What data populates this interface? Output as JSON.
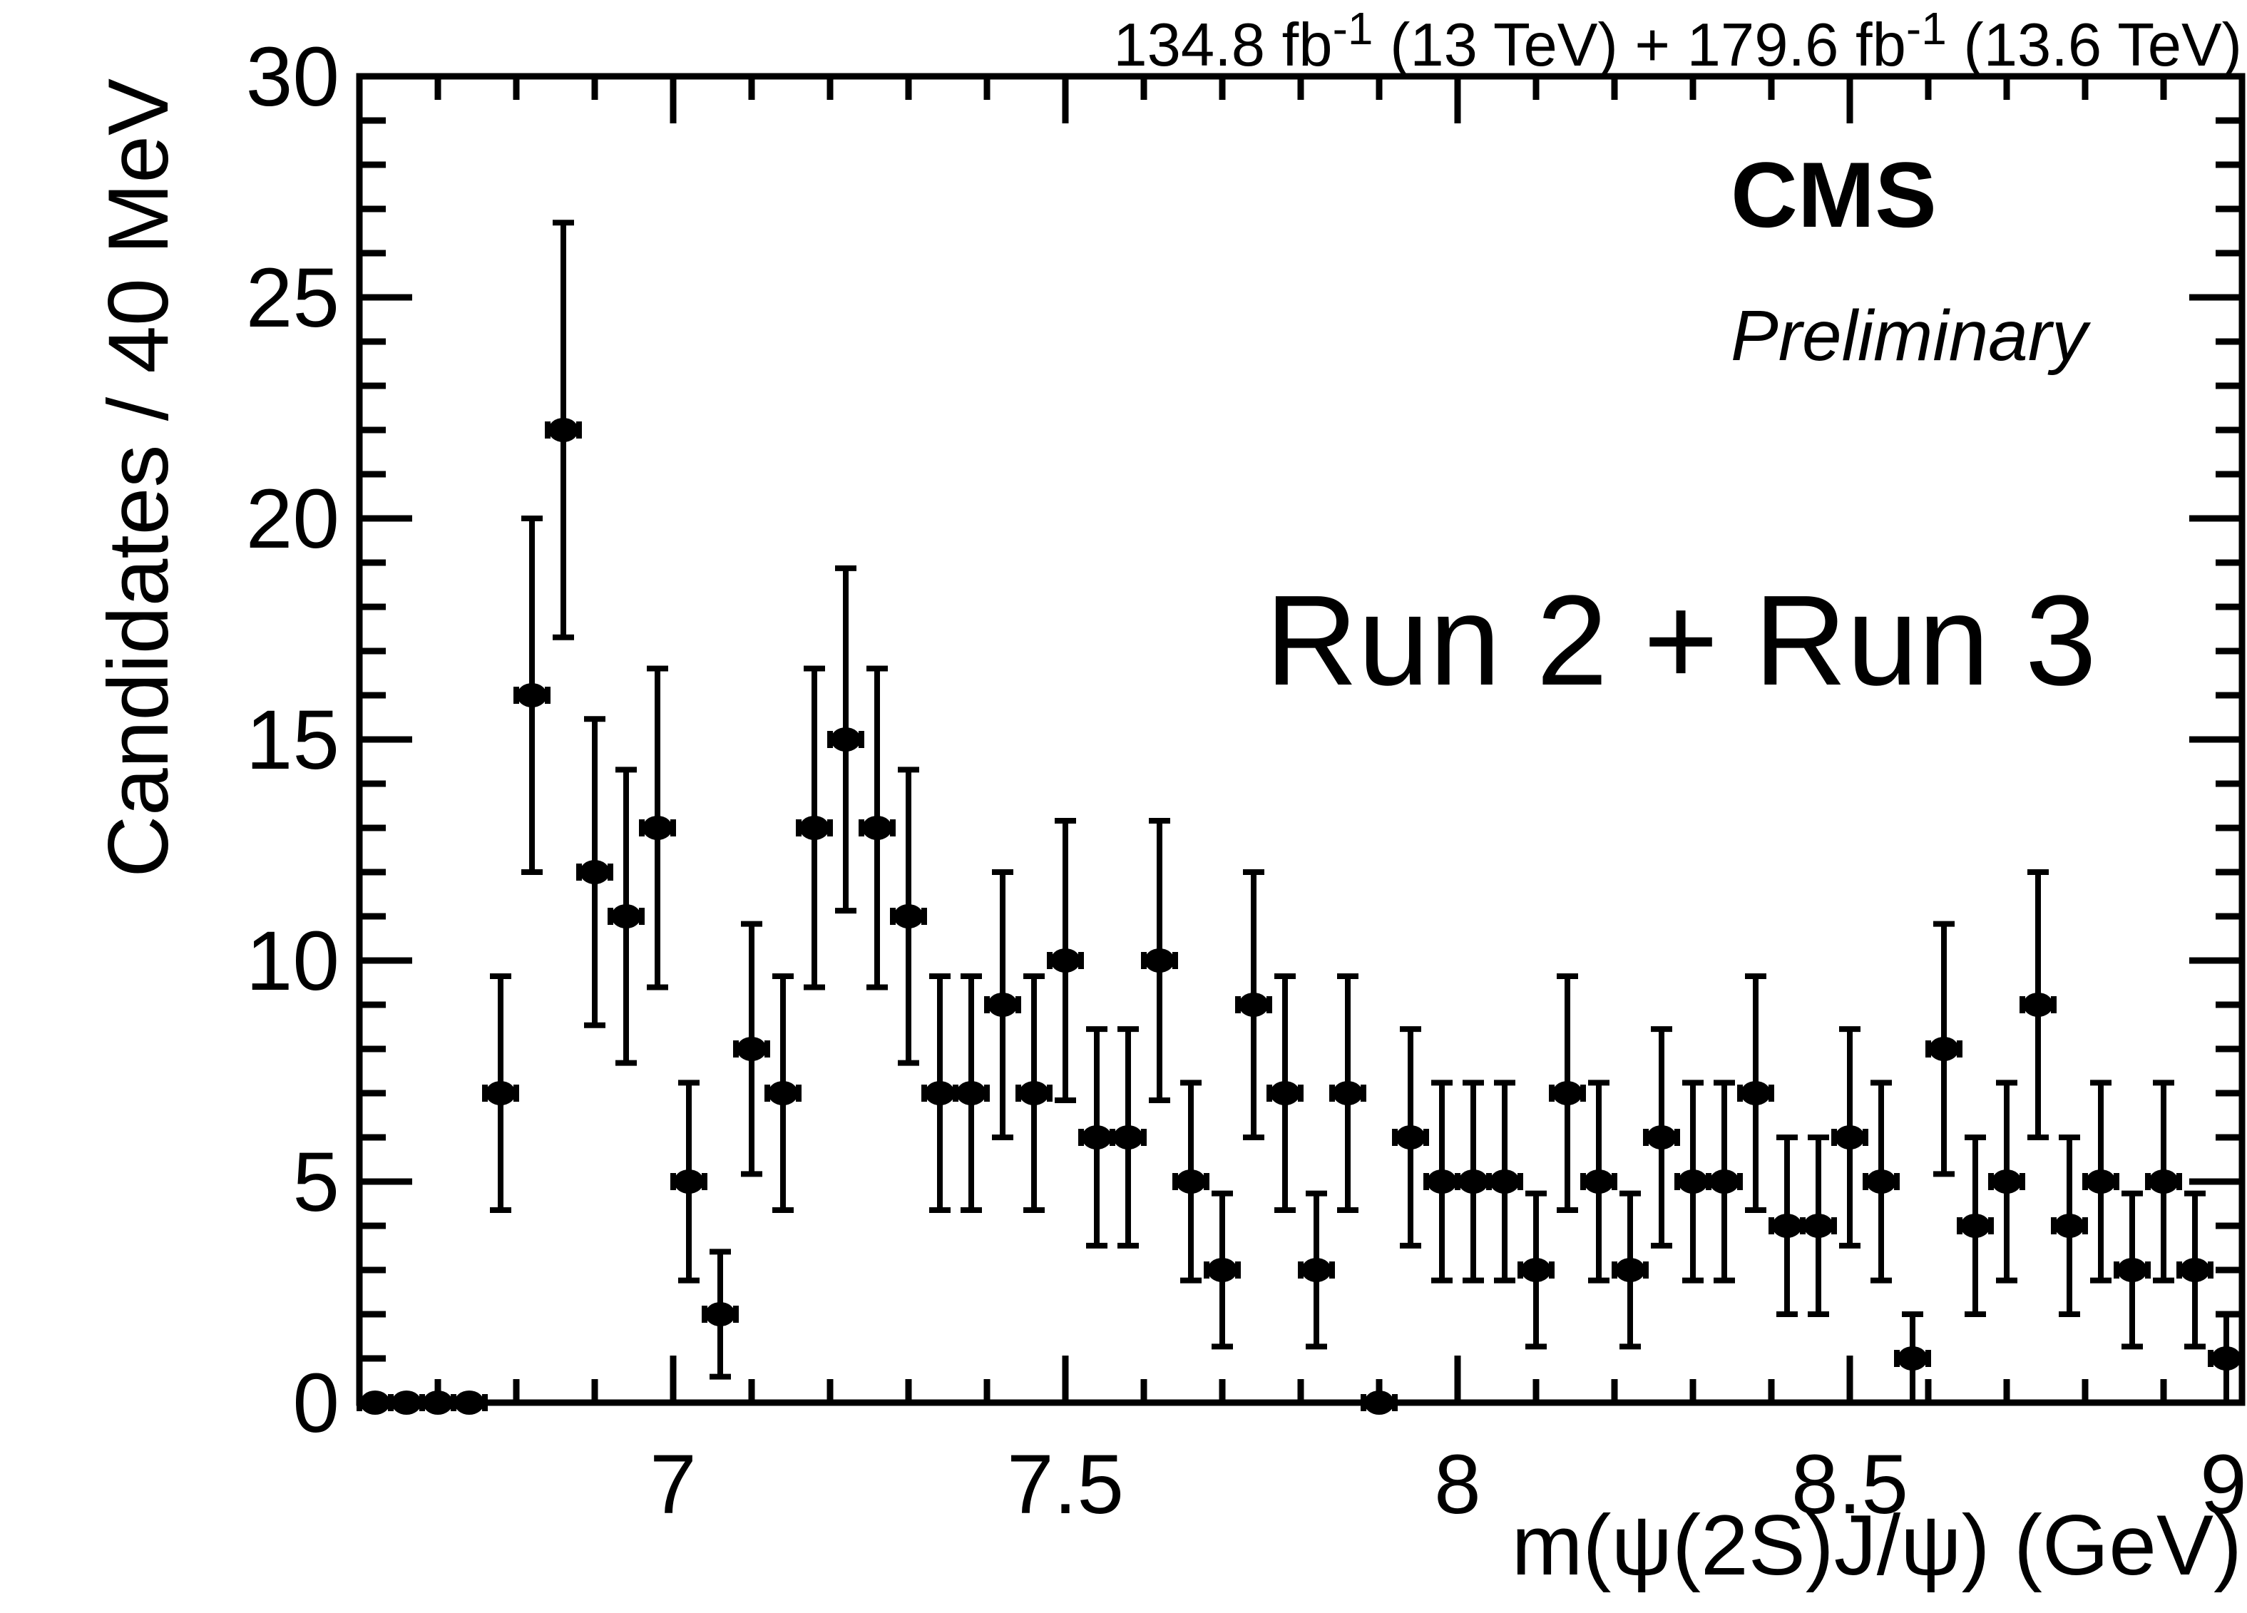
{
  "header": {
    "lumi_segments": [
      {
        "text": "134.8 fb"
      },
      {
        "text": "-1",
        "super": true
      },
      {
        "text": " (13 TeV) + 179.6 fb"
      },
      {
        "text": "-1",
        "super": true
      },
      {
        "text": " (13.6 TeV)"
      }
    ],
    "experiment": "CMS",
    "status": "Preliminary",
    "annotation": "Run 2 + Run 3"
  },
  "chart_data": {
    "type": "scatter",
    "subtype": "histogram-errorbar-points",
    "title": "",
    "xlabel": "m(ψ(2S)J/ψ) (GeV)",
    "ylabel": "Candidates / 40 MeV",
    "xlim": [
      6.6,
      9.0
    ],
    "ylim": [
      0,
      30
    ],
    "bin_width_gev": 0.04,
    "x_major_ticks": [
      7,
      7.5,
      8,
      8.5,
      9
    ],
    "x_major_tick_labels": [
      "7",
      "7.5",
      "8",
      "8.5",
      "9"
    ],
    "x_minor_step": 0.1,
    "y_major_ticks": [
      0,
      5,
      10,
      15,
      20,
      25,
      30
    ],
    "y_major_tick_labels": [
      "0",
      "5",
      "10",
      "15",
      "20",
      "25",
      "30"
    ],
    "y_minor_step": 1,
    "error_model": "symmetric sqrt(N); no vertical bar when N=0; x error = half bin width",
    "marker": "filled-circle",
    "color": "#000000",
    "background": "#ffffff",
    "grid": false,
    "legend": "none",
    "x": [
      6.62,
      6.66,
      6.7,
      6.74,
      6.78,
      6.82,
      6.86,
      6.9,
      6.94,
      6.98,
      7.02,
      7.06,
      7.1,
      7.14,
      7.18,
      7.22,
      7.26,
      7.3,
      7.34,
      7.38,
      7.42,
      7.46,
      7.5,
      7.54,
      7.58,
      7.62,
      7.66,
      7.7,
      7.74,
      7.78,
      7.82,
      7.86,
      7.9,
      7.94,
      7.98,
      8.02,
      8.06,
      8.1,
      8.14,
      8.18,
      8.22,
      8.26,
      8.3,
      8.34,
      8.38,
      8.42,
      8.46,
      8.5,
      8.54,
      8.58,
      8.62,
      8.66,
      8.7,
      8.74,
      8.78,
      8.82,
      8.86,
      8.9,
      8.94,
      8.98
    ],
    "y": [
      0,
      0,
      0,
      0,
      7,
      16,
      22,
      12,
      11,
      13,
      5,
      2,
      8,
      7,
      13,
      15,
      13,
      11,
      7,
      7,
      9,
      7,
      10,
      6,
      6,
      10,
      5,
      3,
      9,
      7,
      3,
      7,
      0,
      6,
      5,
      5,
      5,
      3,
      7,
      5,
      3,
      6,
      5,
      5,
      7,
      4,
      4,
      6,
      5,
      1,
      8,
      4,
      5,
      9,
      4,
      5,
      3,
      5,
      3,
      1
    ]
  }
}
